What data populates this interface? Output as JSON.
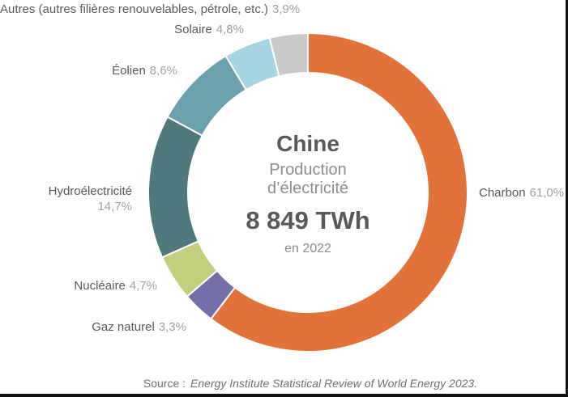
{
  "chart_data": {
    "type": "pie",
    "variant": "donut",
    "direction": "clockwise",
    "start_angle_deg": 0,
    "center": {
      "title": "Chine",
      "subtitle_line1": "Production",
      "subtitle_line2": "d’électricité",
      "total": "8 849 TWh",
      "period": "en 2022"
    },
    "segments": [
      {
        "label": "Charbon",
        "pct_label": "61,0%",
        "value": 61.0,
        "color": "#E2713A"
      },
      {
        "label": "Gaz naturel",
        "pct_label": "3,3%",
        "value": 3.3,
        "color": "#736FA8"
      },
      {
        "label": "Nucléaire",
        "pct_label": "4,7%",
        "value": 4.7,
        "color": "#C3CF7D"
      },
      {
        "label": "Hydroélectricité",
        "pct_label": "14,7%",
        "value": 14.7,
        "color": "#4E7A7E"
      },
      {
        "label": "Éolien",
        "pct_label": "8,6%",
        "value": 8.6,
        "color": "#6BA1AE"
      },
      {
        "label": "Solaire",
        "pct_label": "4,8%",
        "value": 4.8,
        "color": "#A5D5E2"
      },
      {
        "label": "Autres (autres filières renouvelables, pétrole, etc.)",
        "pct_label": "3,9%",
        "value": 3.9,
        "color": "#C9C9C9"
      }
    ],
    "source_prefix": "Source :",
    "source_text": "Energy Institute Statistical Review of World Energy 2023."
  },
  "colors": {
    "label_text": "#58595B",
    "pct_text": "#9EA0A3",
    "center_title": "#58595B",
    "center_sub": "#8A8C8E",
    "source_text": "#6E6F71",
    "frame": "#111111",
    "segment_gap": "#FFFFFF"
  }
}
